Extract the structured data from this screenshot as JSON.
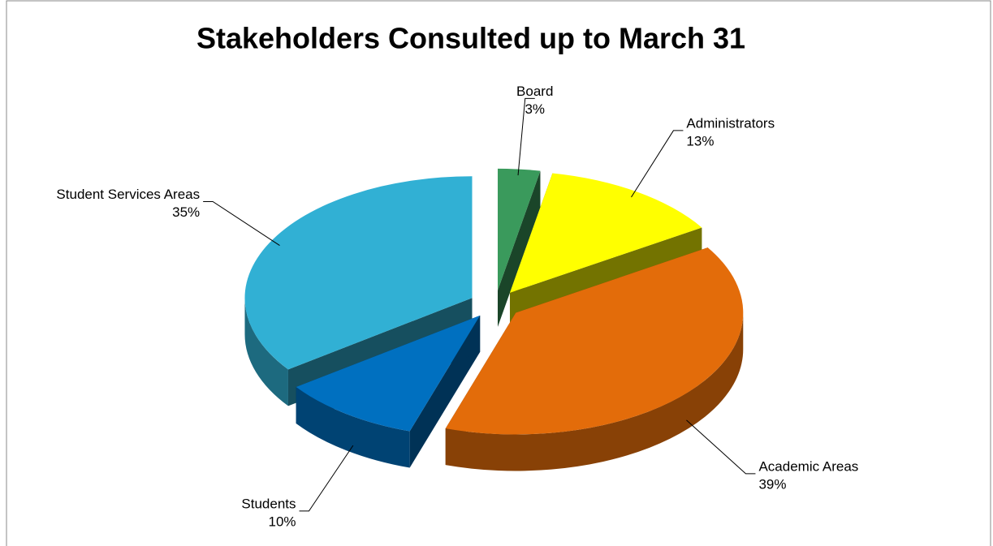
{
  "chart_data": {
    "type": "pie",
    "title": "Stakeholders Consulted up to March 31",
    "categories": [
      "Board",
      "Administrators",
      "Academic Areas",
      "Students",
      "Student Services Areas"
    ],
    "values": [
      3,
      13,
      39,
      10,
      35
    ],
    "value_labels": [
      "3%",
      "13%",
      "39%",
      "10%",
      "35%"
    ],
    "colors": [
      "#3a9a5c",
      "#ffff00",
      "#e36c0a",
      "#0070c0",
      "#31b0d4"
    ]
  }
}
